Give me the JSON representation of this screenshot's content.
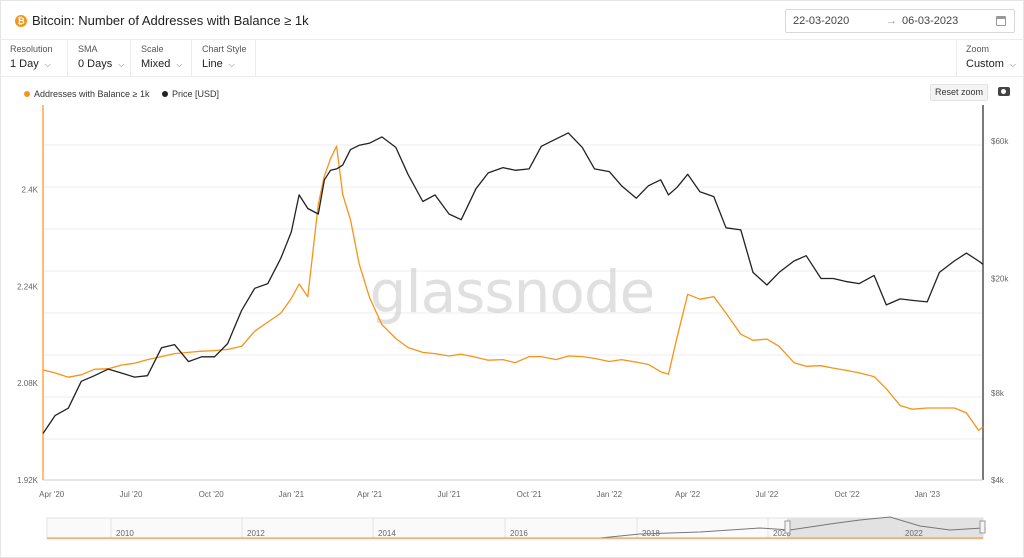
{
  "header": {
    "coin_glyph": "₿",
    "title": "Bitcoin: Number of Addresses with Balance ≥ 1k",
    "date_from": "22-03-2020",
    "date_arrow": "→",
    "date_to": "06-03-2023"
  },
  "controls": [
    {
      "label": "Resolution",
      "value": "1 Day"
    },
    {
      "label": "SMA",
      "value": "0 Days"
    },
    {
      "label": "Scale",
      "value": "Mixed"
    },
    {
      "label": "Chart Style",
      "value": "Line"
    }
  ],
  "zoom": {
    "label": "Zoom",
    "value": "Custom"
  },
  "reset_zoom": "Reset zoom",
  "watermark": "glassnode",
  "colors": {
    "addresses": "#f7931a",
    "price": "#222222",
    "grid": "#eeeeee"
  },
  "chart_data": {
    "type": "line",
    "title": "Bitcoin: Number of Addresses with Balance ≥ 1k",
    "x_tick_labels": [
      "Apr '20",
      "Jul '20",
      "Oct '20",
      "Jan '21",
      "Apr '21",
      "Jul '21",
      "Oct '21",
      "Jan '22",
      "Apr '22",
      "Jul '22",
      "Oct '22",
      "Jan '23"
    ],
    "x_tick_dates": [
      "2020-04-01",
      "2020-07-01",
      "2020-10-01",
      "2021-01-01",
      "2021-04-01",
      "2021-07-01",
      "2021-10-01",
      "2022-01-01",
      "2022-04-01",
      "2022-07-01",
      "2022-10-01",
      "2023-01-01"
    ],
    "xlim": [
      "2020-03-22",
      "2023-03-06"
    ],
    "left_axis": {
      "scale": "linear",
      "ylim": [
        1920,
        2540
      ],
      "tick_values": [
        1920,
        2080,
        2240,
        2400
      ],
      "tick_labels": [
        "1.92K",
        "2.08K",
        "2.24K",
        "2.4K"
      ]
    },
    "right_axis": {
      "scale": "log",
      "ylim": [
        4000,
        80000
      ],
      "tick_values": [
        4000,
        8000,
        20000,
        60000
      ],
      "tick_labels": [
        "$4k",
        "$8k",
        "$20k",
        "$60k"
      ]
    },
    "grid": true,
    "legend_position": "top-left",
    "series": [
      {
        "name": "Addresses with Balance ≥ 1k",
        "axis": "left",
        "x": [
          "2020-03-22",
          "2020-04-05",
          "2020-04-20",
          "2020-05-05",
          "2020-05-20",
          "2020-06-05",
          "2020-06-20",
          "2020-07-05",
          "2020-07-20",
          "2020-08-05",
          "2020-08-20",
          "2020-09-05",
          "2020-09-20",
          "2020-10-05",
          "2020-10-20",
          "2020-11-05",
          "2020-11-20",
          "2020-12-05",
          "2020-12-20",
          "2021-01-01",
          "2021-01-10",
          "2021-01-20",
          "2021-02-01",
          "2021-02-08",
          "2021-02-15",
          "2021-02-22",
          "2021-03-01",
          "2021-03-10",
          "2021-03-20",
          "2021-04-01",
          "2021-04-15",
          "2021-05-01",
          "2021-05-15",
          "2021-06-01",
          "2021-06-15",
          "2021-07-01",
          "2021-07-15",
          "2021-08-01",
          "2021-08-15",
          "2021-09-01",
          "2021-09-15",
          "2021-10-01",
          "2021-10-15",
          "2021-11-01",
          "2021-11-15",
          "2021-12-01",
          "2021-12-15",
          "2022-01-01",
          "2022-01-15",
          "2022-02-01",
          "2022-02-15",
          "2022-03-01",
          "2022-03-10",
          "2022-03-20",
          "2022-04-01",
          "2022-04-15",
          "2022-05-01",
          "2022-05-15",
          "2022-06-01",
          "2022-06-15",
          "2022-07-01",
          "2022-07-15",
          "2022-08-01",
          "2022-08-15",
          "2022-09-01",
          "2022-09-15",
          "2022-10-01",
          "2022-10-15",
          "2022-11-01",
          "2022-11-15",
          "2022-12-01",
          "2022-12-15",
          "2023-01-01",
          "2023-01-15",
          "2023-02-01",
          "2023-02-15",
          "2023-03-01",
          "2023-03-06"
        ],
        "values": [
          2102,
          2097,
          2090,
          2094,
          2103,
          2104,
          2110,
          2113,
          2119,
          2124,
          2129,
          2131,
          2133,
          2134,
          2136,
          2141,
          2166,
          2181,
          2196,
          2220,
          2244,
          2223,
          2376,
          2423,
          2451,
          2472,
          2392,
          2350,
          2277,
          2221,
          2177,
          2154,
          2139,
          2131,
          2129,
          2125,
          2128,
          2123,
          2118,
          2119,
          2114,
          2124,
          2124,
          2119,
          2125,
          2124,
          2121,
          2116,
          2119,
          2115,
          2111,
          2099,
          2095,
          2157,
          2227,
          2219,
          2223,
          2196,
          2161,
          2151,
          2153,
          2141,
          2114,
          2108,
          2109,
          2105,
          2101,
          2097,
          2091,
          2071,
          2043,
          2037,
          2039,
          2039,
          2039,
          2031,
          2002,
          2008
        ]
      },
      {
        "name": "Price [USD]",
        "axis": "right",
        "x": [
          "2020-03-22",
          "2020-04-05",
          "2020-04-20",
          "2020-05-05",
          "2020-05-20",
          "2020-06-05",
          "2020-06-20",
          "2020-07-05",
          "2020-07-20",
          "2020-08-05",
          "2020-08-20",
          "2020-09-05",
          "2020-09-20",
          "2020-10-05",
          "2020-10-20",
          "2020-11-05",
          "2020-11-20",
          "2020-12-05",
          "2020-12-20",
          "2021-01-01",
          "2021-01-10",
          "2021-01-20",
          "2021-02-01",
          "2021-02-08",
          "2021-02-15",
          "2021-02-22",
          "2021-03-01",
          "2021-03-10",
          "2021-03-20",
          "2021-04-01",
          "2021-04-15",
          "2021-05-01",
          "2021-05-15",
          "2021-06-01",
          "2021-06-15",
          "2021-07-01",
          "2021-07-15",
          "2021-08-01",
          "2021-08-15",
          "2021-09-01",
          "2021-09-15",
          "2021-10-01",
          "2021-10-15",
          "2021-11-01",
          "2021-11-15",
          "2021-12-01",
          "2021-12-15",
          "2022-01-01",
          "2022-01-15",
          "2022-02-01",
          "2022-02-15",
          "2022-03-01",
          "2022-03-10",
          "2022-03-20",
          "2022-04-01",
          "2022-04-15",
          "2022-05-01",
          "2022-05-15",
          "2022-06-01",
          "2022-06-15",
          "2022-07-01",
          "2022-07-15",
          "2022-08-01",
          "2022-08-15",
          "2022-09-01",
          "2022-09-15",
          "2022-10-01",
          "2022-10-15",
          "2022-11-01",
          "2022-11-15",
          "2022-12-01",
          "2022-12-15",
          "2023-01-01",
          "2023-01-15",
          "2023-02-01",
          "2023-02-15",
          "2023-03-01",
          "2023-03-06"
        ],
        "values": [
          5800,
          6700,
          7100,
          8800,
          9200,
          9700,
          9400,
          9100,
          9200,
          11500,
          11800,
          10300,
          10700,
          10700,
          11900,
          15500,
          18500,
          19200,
          23500,
          29000,
          39000,
          35000,
          33500,
          44000,
          47500,
          48000,
          49500,
          56000,
          58000,
          59000,
          62000,
          57000,
          46000,
          37000,
          39000,
          33500,
          32000,
          41000,
          46500,
          48500,
          47500,
          48000,
          57500,
          61000,
          64000,
          57000,
          48000,
          47000,
          42000,
          38000,
          42000,
          44000,
          39000,
          41500,
          46000,
          40000,
          38500,
          30000,
          29500,
          21000,
          19000,
          21000,
          23000,
          24000,
          20000,
          20000,
          19500,
          19200,
          20500,
          16200,
          17000,
          16800,
          16600,
          21000,
          23000,
          24500,
          23000,
          22400
        ]
      }
    ]
  },
  "navigator": {
    "year_labels": [
      "2010",
      "2012",
      "2014",
      "2016",
      "2018",
      "2020",
      "2022"
    ]
  }
}
